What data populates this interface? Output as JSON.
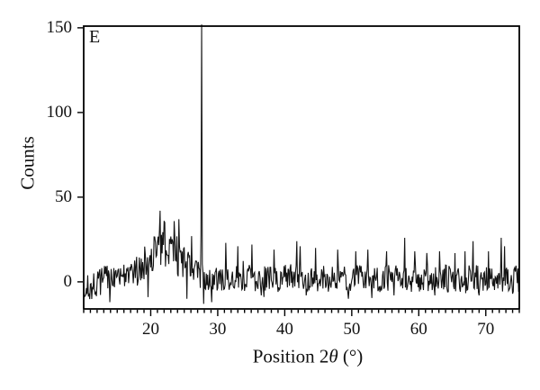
{
  "figure": {
    "panel_label": "E",
    "background_color": "#ffffff",
    "axis_color": "#000000",
    "trace_color": "#141414"
  },
  "labels": {
    "xlabel_prefix": "Position 2",
    "xlabel_theta": "θ",
    "xlabel_suffix": " (°)",
    "ylabel": "Counts"
  },
  "chart_data": {
    "type": "line",
    "title": "",
    "xlabel": "Position 2θ (°)",
    "ylabel": "Counts",
    "xlim": [
      10,
      75
    ],
    "ylim": [
      -16,
      151
    ],
    "x_major_ticks": [
      20,
      30,
      40,
      50,
      60,
      70
    ],
    "x_minor_tick_step": 1,
    "y_ticks": [
      0,
      50,
      100,
      150
    ],
    "grid": false,
    "legend": null,
    "series_description": "XRD diffractogram: noisy baseline around 0-5 counts (spread roughly -10 to +15), broad amorphous hump centered near 2-theta = 22 deg reaching ~40 counts, one dominant sharp peak at 2-theta = 27.6 deg exceeding 150 counts (clipped at plot top), and minor spikes near 31, 35, 42, 58, 68 and 72-73 deg",
    "noise_model": {
      "seed": 7,
      "step_deg": 0.1,
      "baseline": 2,
      "noise_halfspan": 8,
      "start_dip": {
        "center": 10.2,
        "sigma": 1.5,
        "depth": 6
      },
      "hump": {
        "center": 21.9,
        "sigma": 2.4,
        "height": 20,
        "extra_noise": 6
      },
      "spikes": [
        [
          10.1,
          -9
        ],
        [
          13.9,
          -12
        ],
        [
          19.6,
          -9
        ],
        [
          21.4,
          42
        ],
        [
          22.1,
          35
        ],
        [
          24.2,
          37
        ],
        [
          25.4,
          -10
        ],
        [
          26.1,
          27
        ],
        [
          27.5,
          28
        ],
        [
          27.6,
          152
        ],
        [
          27.9,
          -13
        ],
        [
          29.1,
          -12
        ],
        [
          31.2,
          23
        ],
        [
          33.0,
          21
        ],
        [
          35.1,
          22
        ],
        [
          36.5,
          -8
        ],
        [
          38.4,
          19
        ],
        [
          41.8,
          24
        ],
        [
          42.3,
          21
        ],
        [
          43.2,
          -8
        ],
        [
          44.6,
          20
        ],
        [
          47.9,
          19
        ],
        [
          49.5,
          -10
        ],
        [
          50.6,
          18
        ],
        [
          52.4,
          19
        ],
        [
          55.2,
          18
        ],
        [
          56.3,
          -8
        ],
        [
          57.9,
          26
        ],
        [
          59.4,
          18
        ],
        [
          61.2,
          17
        ],
        [
          62.4,
          -8
        ],
        [
          63.1,
          18
        ],
        [
          65.4,
          17
        ],
        [
          66.9,
          18
        ],
        [
          68.1,
          24
        ],
        [
          69.0,
          -8
        ],
        [
          70.4,
          18
        ],
        [
          72.3,
          26
        ],
        [
          72.8,
          21
        ],
        [
          74.0,
          -7
        ]
      ]
    }
  }
}
